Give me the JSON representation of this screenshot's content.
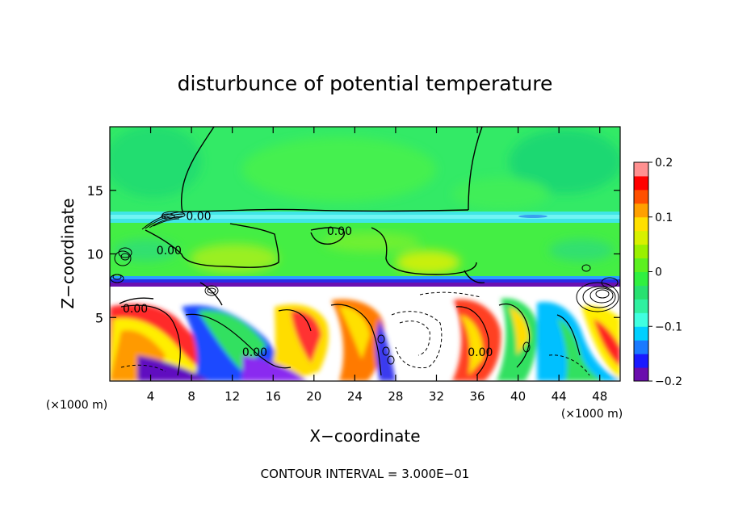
{
  "chart_data": {
    "type": "heatmap",
    "title": "disturbunce of potential temperature",
    "xlabel": "X−coordinate",
    "ylabel": "Z−coordinate",
    "x_unit_label": "(×1000 m)",
    "y_unit_label": "(×1000 m)",
    "xlim": [
      0,
      50
    ],
    "ylim": [
      0,
      20
    ],
    "x_ticks": [
      4,
      8,
      12,
      16,
      20,
      24,
      28,
      32,
      36,
      40,
      44,
      48
    ],
    "y_ticks": [
      5,
      10,
      15
    ],
    "contour_interval_text": "CONTOUR INTERVAL = 3.000E−01",
    "contour_labels": [
      {
        "text": "0.00",
        "x": 8.7,
        "z": 13.0
      },
      {
        "text": "0.00",
        "x": 22.5,
        "z": 11.8
      },
      {
        "text": "0.00",
        "x": 5.8,
        "z": 10.3
      },
      {
        "text": "0.00",
        "x": 2.5,
        "z": 5.7
      },
      {
        "text": "0.00",
        "x": 14.2,
        "z": 2.3
      },
      {
        "text": "0.00",
        "x": 36.3,
        "z": 2.3
      }
    ],
    "colorbar": {
      "min": -0.2,
      "max": 0.2,
      "ticks": [
        "0.2",
        "0.1",
        "0",
        "−0.1",
        "−0.2"
      ],
      "colors": [
        "#6a0dad",
        "#1a1aff",
        "#1a7aff",
        "#00d0ff",
        "#40ffe0",
        "#30f0a0",
        "#28e070",
        "#30f040",
        "#5cf020",
        "#9af000",
        "#d8f000",
        "#ffe000",
        "#ffa000",
        "#ff5000",
        "#ff0000",
        "#ff9090"
      ]
    },
    "layers": [
      {
        "z_range": [
          13.5,
          20
        ],
        "value": 0.02
      },
      {
        "z_range": [
          12.5,
          13.5
        ],
        "value": -0.08
      },
      {
        "z_range": [
          8.0,
          12.5
        ],
        "value": 0.04
      },
      {
        "z_range": [
          7.3,
          8.0
        ],
        "value": -0.19
      },
      {
        "z_range": [
          0,
          7.3
        ],
        "value": "mixed"
      }
    ]
  }
}
